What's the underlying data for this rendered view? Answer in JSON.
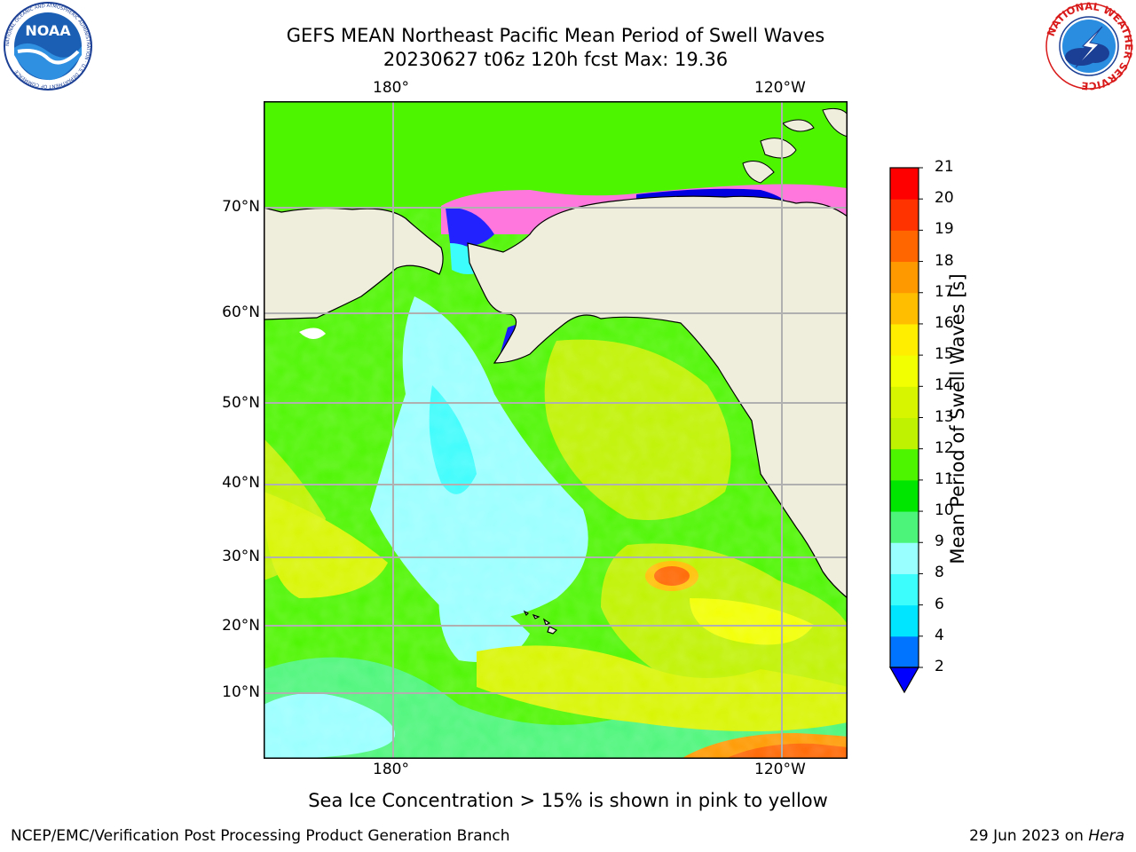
{
  "header": {
    "title_line1": "GEFS MEAN Northeast Pacific Mean Period of Swell Waves",
    "title_line2": "20230627 t06z 120h fcst   Max: 19.36"
  },
  "logos": {
    "noaa_text": "NOAA",
    "noaa_ring_text": "NATIONAL OCEANIC AND ATMOSPHERIC ADMINISTRATION · U.S. DEPARTMENT OF COMMERCE",
    "nws_ring_text": "NATIONAL WEATHER SERVICE"
  },
  "map": {
    "lon_top": [
      "180°",
      "120°W"
    ],
    "lon_bottom": [
      "180°",
      "120°W"
    ],
    "lat_labels": [
      "70°N",
      "60°N",
      "50°N",
      "40°N",
      "30°N",
      "20°N",
      "10°N"
    ],
    "land_color": "#efeddc",
    "grid_color": "#b0b0b0"
  },
  "colorbar": {
    "label": "Mean Period of Swell Waves [s]",
    "ticks": [
      "2",
      "4",
      "6",
      "8",
      "9",
      "10",
      "11",
      "12",
      "13",
      "14",
      "15",
      "16",
      "17",
      "18",
      "19",
      "20",
      "21"
    ],
    "colors": [
      "#0073ff",
      "#00e5ff",
      "#3dfcfc",
      "#99ffff",
      "#4cf57a",
      "#00e600",
      "#4df500",
      "#bff200",
      "#d8f500",
      "#f2ff00",
      "#ffee00",
      "#ffbf00",
      "#ff9900",
      "#ff6600",
      "#ff3300",
      "#ff0000"
    ],
    "extend_color": "#0000ff"
  },
  "footer": {
    "note": "Sea Ice Concentration > 15% is shown in pink to yellow",
    "left": "NCEP/EMC/Verification Post Processing Product Generation Branch",
    "right_date": "29 Jun 2023 on ",
    "right_machine": "Hera"
  }
}
